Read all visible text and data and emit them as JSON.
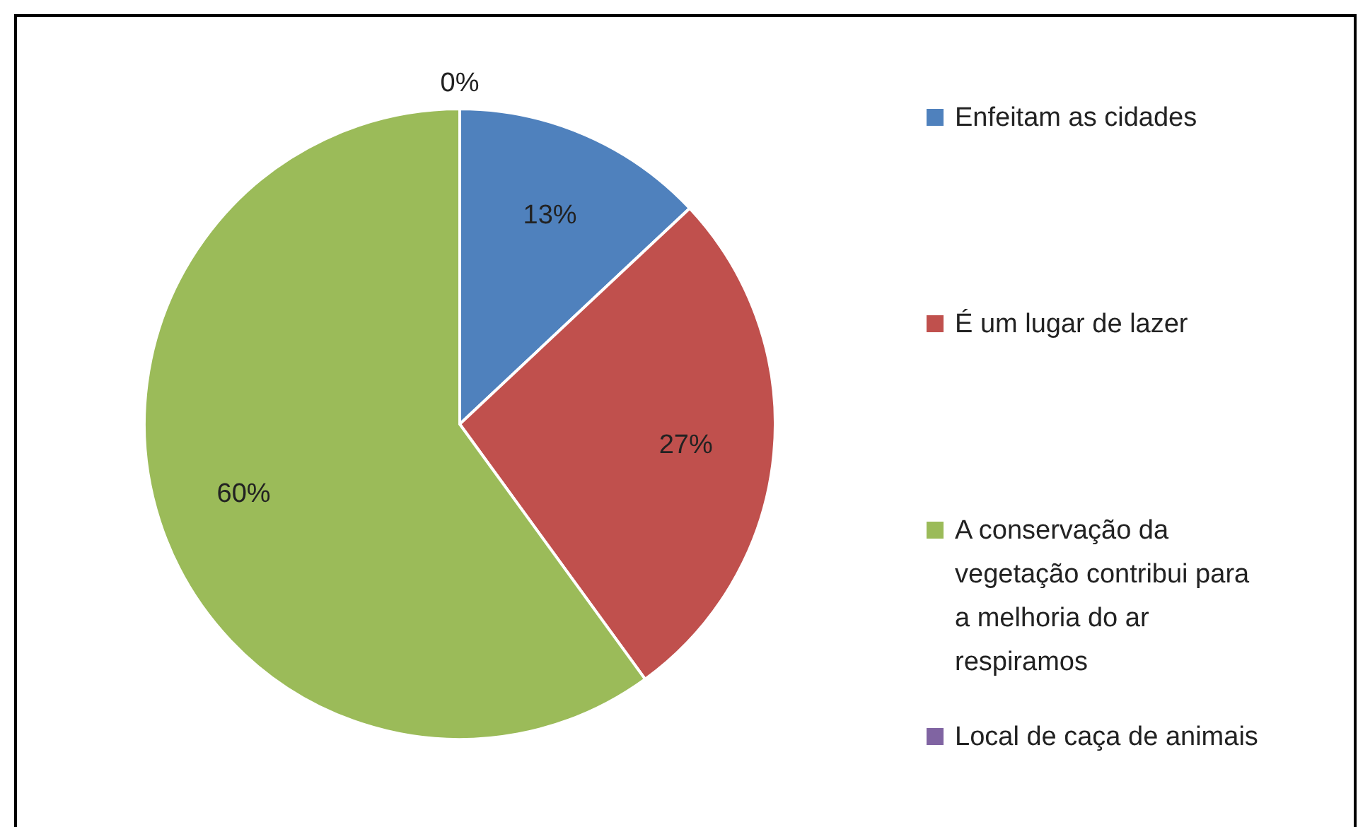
{
  "chart_data": {
    "type": "pie",
    "categories": [
      "Enfeitam as cidades",
      "É um lugar de lazer",
      "A conservação da vegetação contribui para a melhoria do ar respiramos",
      "Local de caça de animais"
    ],
    "values": [
      13,
      27,
      60,
      0
    ],
    "colors": [
      "#4f81bd",
      "#c0504d",
      "#9bbb59",
      "#8064a2"
    ],
    "value_labels": [
      "13%",
      "27%",
      "60%",
      "0%"
    ],
    "legend": "right"
  }
}
